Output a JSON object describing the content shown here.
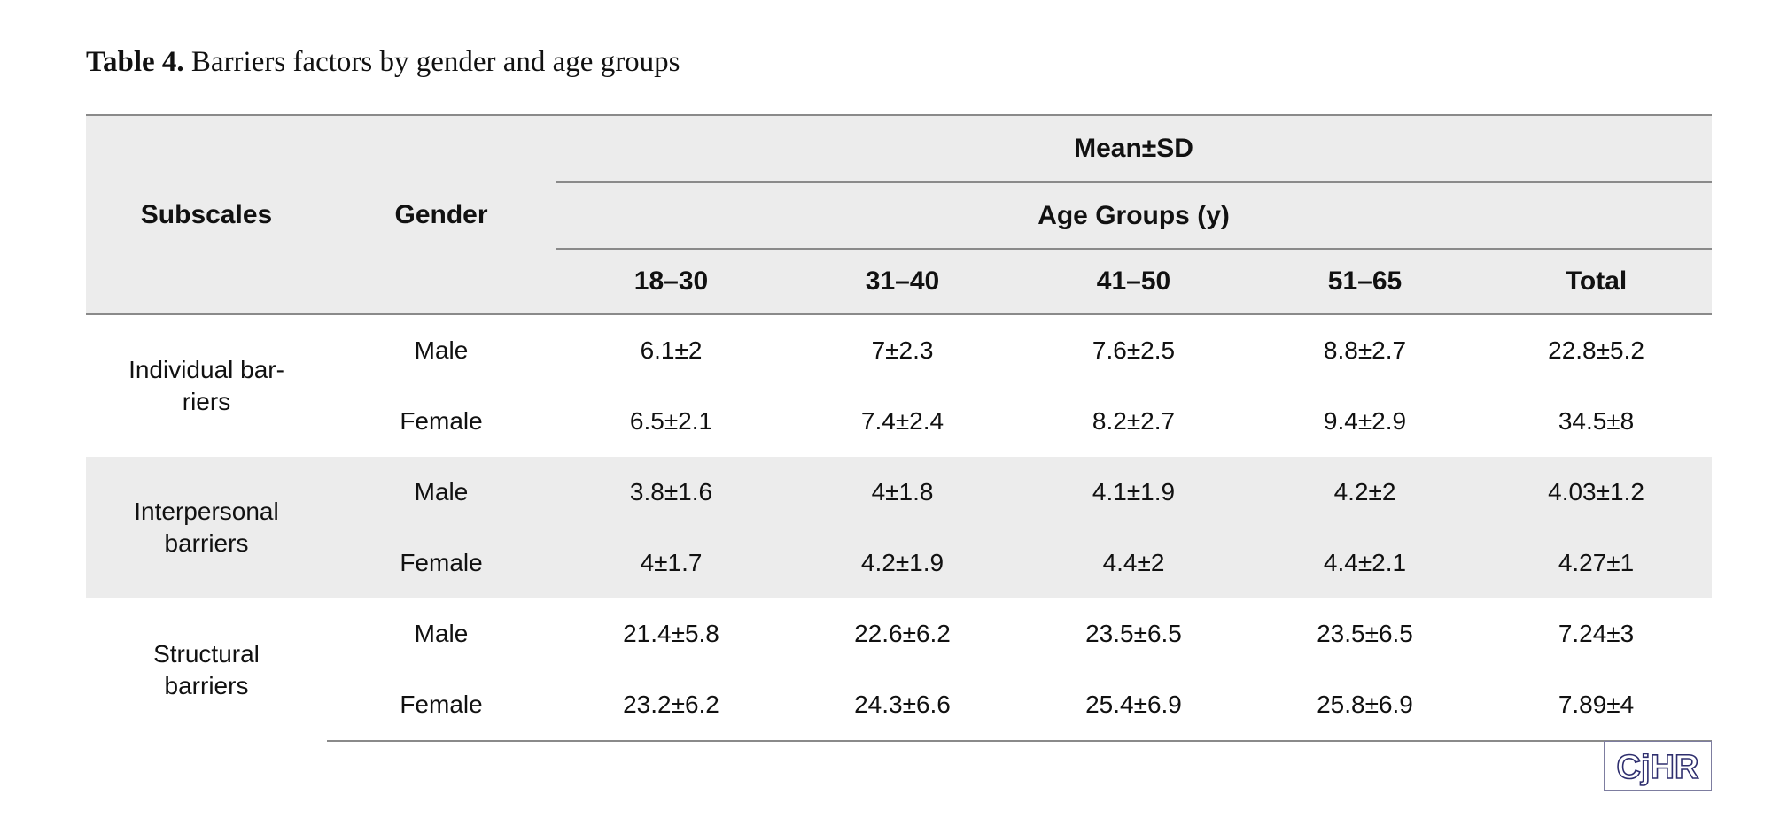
{
  "caption": {
    "label": "Table 4.",
    "text": "Barriers factors by gender and age groups"
  },
  "table": {
    "header": {
      "subscales": "Subscales",
      "gender": "Gender",
      "mean_sd": "Mean±SD",
      "age_groups": "Age Groups (y)",
      "columns": [
        "18–30",
        "31–40",
        "41–50",
        "51–65",
        "Total"
      ]
    },
    "groups": [
      {
        "subscale_line1": "Individual bar-",
        "subscale_line2": "riers",
        "rows": [
          {
            "gender": "Male",
            "values": [
              "6.1±2",
              "7±2.3",
              "7.6±2.5",
              "8.8±2.7",
              "22.8±5.2"
            ]
          },
          {
            "gender": "Female",
            "values": [
              "6.5±2.1",
              "7.4±2.4",
              "8.2±2.7",
              "9.4±2.9",
              "34.5±8"
            ]
          }
        ]
      },
      {
        "subscale_line1": "Interpersonal",
        "subscale_line2": "barriers",
        "rows": [
          {
            "gender": "Male",
            "values": [
              "3.8±1.6",
              "4±1.8",
              "4.1±1.9",
              "4.2±2",
              "4.03±1.2"
            ]
          },
          {
            "gender": "Female",
            "values": [
              "4±1.7",
              "4.2±1.9",
              "4.4±2",
              "4.4±2.1",
              "4.27±1"
            ]
          }
        ]
      },
      {
        "subscale_line1": "Structural",
        "subscale_line2": "barriers",
        "rows": [
          {
            "gender": "Male",
            "values": [
              "21.4±5.8",
              "22.6±6.2",
              "23.5±6.5",
              "23.5±6.5",
              "7.24±3"
            ]
          },
          {
            "gender": "Female",
            "values": [
              "23.2±6.2",
              "24.3±6.6",
              "25.4±6.9",
              "25.8±6.9",
              "7.89±4"
            ]
          }
        ]
      }
    ]
  },
  "logo": {
    "text": "CjHR",
    "color": "#2e2e6e"
  },
  "colors": {
    "header_bg": "#ececec",
    "shaded_row_bg": "#ececec",
    "rule": "#8a8a8a"
  }
}
